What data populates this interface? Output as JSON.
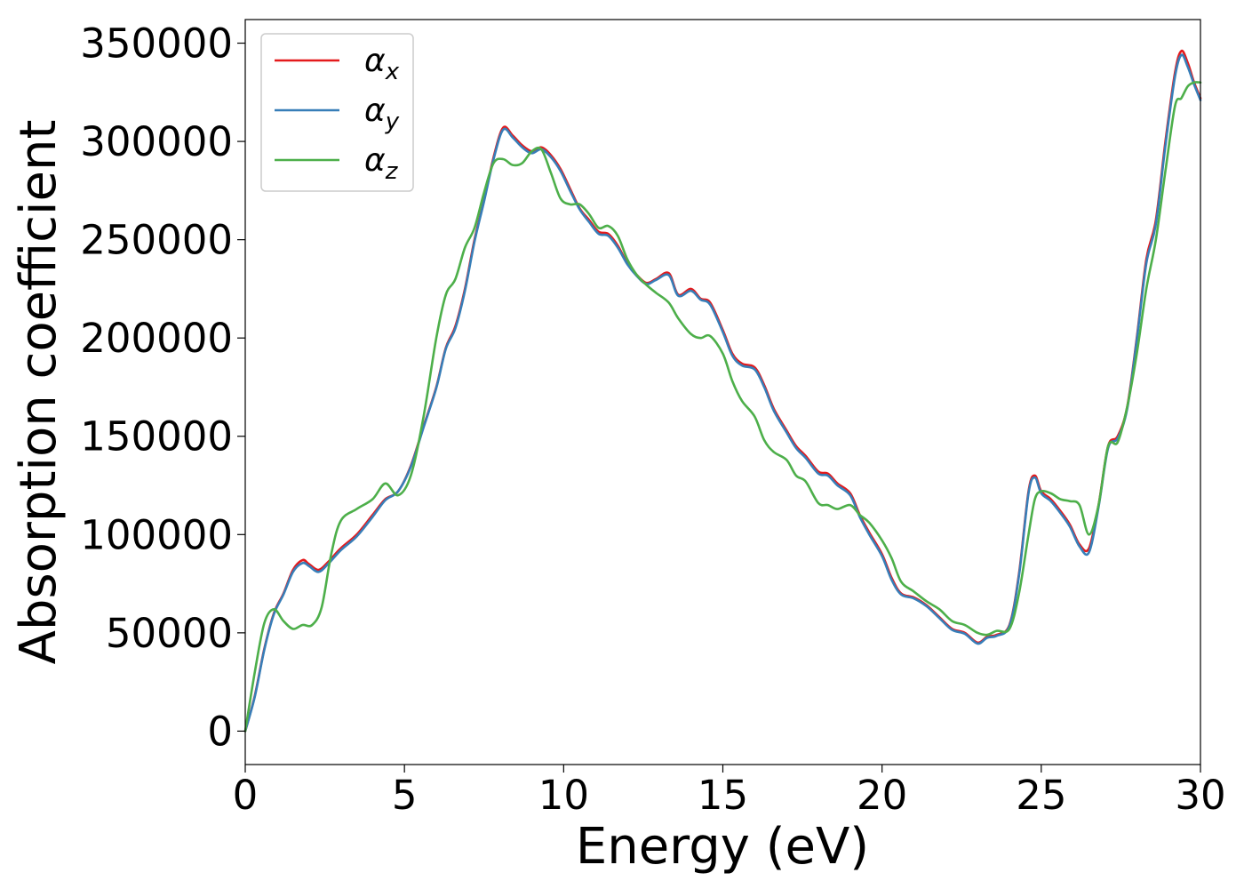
{
  "chart_data": {
    "type": "line",
    "title": "",
    "xlabel": "Energy (eV)",
    "ylabel": "Absorption coefficient",
    "xlim": [
      0,
      30
    ],
    "ylim": [
      -17000,
      362000
    ],
    "x_ticks": [
      0,
      5,
      10,
      15,
      20,
      25,
      30
    ],
    "y_ticks": [
      0,
      50000,
      100000,
      150000,
      200000,
      250000,
      300000,
      350000
    ],
    "grid": false,
    "legend_position": "upper-left",
    "series": [
      {
        "name": "αx",
        "legend_main": "α",
        "legend_sub": "x",
        "color": "#e41a1c",
        "x": [
          0,
          0.3,
          0.6,
          0.9,
          1.2,
          1.5,
          1.8,
          2.0,
          2.3,
          2.6,
          3.0,
          3.5,
          4.0,
          4.4,
          4.8,
          5.2,
          5.6,
          6.0,
          6.3,
          6.6,
          6.9,
          7.2,
          7.5,
          7.8,
          8.1,
          8.4,
          8.7,
          9.0,
          9.3,
          9.6,
          9.9,
          10.2,
          10.5,
          10.8,
          11.1,
          11.4,
          11.7,
          12.0,
          12.3,
          12.6,
          12.9,
          13.3,
          13.6,
          14.0,
          14.3,
          14.6,
          15.0,
          15.3,
          15.6,
          16.0,
          16.3,
          16.6,
          17.0,
          17.3,
          17.6,
          18.0,
          18.3,
          18.6,
          19.0,
          19.3,
          19.6,
          20.0,
          20.3,
          20.6,
          21.0,
          21.4,
          21.8,
          22.2,
          22.6,
          23.0,
          23.3,
          23.6,
          24.0,
          24.3,
          24.6,
          24.8,
          25.0,
          25.3,
          25.6,
          25.9,
          26.2,
          26.5,
          26.8,
          27.1,
          27.4,
          27.7,
          28.0,
          28.3,
          28.6,
          28.9,
          29.2,
          29.4,
          29.6,
          29.8,
          30.0
        ],
        "values": [
          0,
          18000,
          42000,
          60000,
          70000,
          82000,
          87000,
          85000,
          82000,
          86000,
          93000,
          100000,
          110000,
          118000,
          122000,
          135000,
          155000,
          175000,
          195000,
          206000,
          225000,
          250000,
          270000,
          292000,
          307000,
          303000,
          298000,
          295000,
          297000,
          293000,
          286000,
          276000,
          266000,
          260000,
          254000,
          253000,
          247000,
          238000,
          232000,
          228000,
          230000,
          233000,
          222000,
          225000,
          220000,
          218000,
          204000,
          192000,
          187000,
          185000,
          176000,
          164000,
          153000,
          145000,
          140000,
          132000,
          131000,
          126000,
          121000,
          110000,
          101000,
          90000,
          78000,
          70000,
          68000,
          64000,
          58000,
          52000,
          50000,
          45000,
          48000,
          49000,
          54000,
          80000,
          122000,
          130000,
          122000,
          118000,
          112000,
          105000,
          95000,
          93000,
          115000,
          145000,
          150000,
          165000,
          200000,
          240000,
          260000,
          300000,
          335000,
          346000,
          340000,
          330000,
          322000
        ]
      },
      {
        "name": "αy",
        "legend_main": "α",
        "legend_sub": "y",
        "color": "#377eb8",
        "x": [
          0,
          0.3,
          0.6,
          0.9,
          1.2,
          1.5,
          1.8,
          2.0,
          2.3,
          2.6,
          3.0,
          3.5,
          4.0,
          4.4,
          4.8,
          5.2,
          5.6,
          6.0,
          6.3,
          6.6,
          6.9,
          7.2,
          7.5,
          7.8,
          8.1,
          8.4,
          8.7,
          9.0,
          9.3,
          9.6,
          9.9,
          10.2,
          10.5,
          10.8,
          11.1,
          11.4,
          11.7,
          12.0,
          12.3,
          12.6,
          12.9,
          13.3,
          13.6,
          14.0,
          14.3,
          14.6,
          15.0,
          15.3,
          15.6,
          16.0,
          16.3,
          16.6,
          17.0,
          17.3,
          17.6,
          18.0,
          18.3,
          18.6,
          19.0,
          19.3,
          19.6,
          20.0,
          20.3,
          20.6,
          21.0,
          21.4,
          21.8,
          22.2,
          22.6,
          23.0,
          23.3,
          23.6,
          24.0,
          24.3,
          24.6,
          24.8,
          25.0,
          25.3,
          25.6,
          25.9,
          26.2,
          26.5,
          26.8,
          27.1,
          27.4,
          27.7,
          28.0,
          28.3,
          28.6,
          28.9,
          29.2,
          29.4,
          29.6,
          29.8,
          30.0
        ],
        "values": [
          0,
          17500,
          41500,
          59500,
          69500,
          81000,
          85500,
          84000,
          81000,
          85000,
          92000,
          99000,
          109000,
          117500,
          122000,
          134500,
          154500,
          174500,
          194500,
          205000,
          224000,
          249000,
          269500,
          291000,
          306000,
          302000,
          297000,
          294000,
          296000,
          292000,
          285000,
          275000,
          265500,
          259000,
          253000,
          252000,
          246000,
          237500,
          231500,
          227500,
          229500,
          232000,
          221500,
          224000,
          219500,
          217000,
          203000,
          191000,
          186000,
          184000,
          175000,
          163000,
          152000,
          144000,
          139000,
          131000,
          130000,
          125000,
          120000,
          109000,
          100000,
          89000,
          77000,
          69500,
          67500,
          63500,
          57500,
          51500,
          49500,
          44500,
          47500,
          48500,
          53500,
          79000,
          121000,
          129000,
          121000,
          117000,
          111000,
          104000,
          94000,
          91000,
          114000,
          144000,
          149000,
          164000,
          199000,
          238000,
          258000,
          298000,
          333000,
          344000,
          338000,
          329000,
          321000
        ]
      },
      {
        "name": "αz",
        "legend_main": "α",
        "legend_sub": "z",
        "color": "#4daf4a",
        "x": [
          0,
          0.3,
          0.6,
          0.9,
          1.2,
          1.5,
          1.8,
          2.1,
          2.4,
          2.7,
          3.0,
          3.5,
          4.0,
          4.4,
          4.8,
          5.2,
          5.6,
          6.0,
          6.3,
          6.6,
          6.9,
          7.2,
          7.5,
          7.8,
          8.1,
          8.4,
          8.7,
          9.0,
          9.3,
          9.6,
          9.9,
          10.2,
          10.5,
          10.8,
          11.1,
          11.4,
          11.7,
          12.0,
          12.3,
          12.6,
          12.9,
          13.3,
          13.6,
          14.0,
          14.3,
          14.6,
          15.0,
          15.3,
          15.6,
          16.0,
          16.3,
          16.6,
          17.0,
          17.3,
          17.6,
          18.0,
          18.3,
          18.6,
          19.0,
          19.3,
          19.6,
          20.0,
          20.3,
          20.6,
          21.0,
          21.4,
          21.8,
          22.2,
          22.6,
          23.0,
          23.3,
          23.6,
          24.0,
          24.3,
          24.6,
          24.8,
          25.0,
          25.3,
          25.6,
          25.9,
          26.2,
          26.5,
          26.8,
          27.1,
          27.4,
          27.7,
          28.0,
          28.3,
          28.6,
          28.9,
          29.2,
          29.4,
          29.6,
          29.8,
          30.0
        ],
        "values": [
          0,
          30000,
          55000,
          62000,
          56000,
          52000,
          54000,
          54000,
          63000,
          90000,
          107000,
          113000,
          118000,
          126000,
          120000,
          130000,
          160000,
          200000,
          222000,
          230000,
          246000,
          256000,
          274000,
          289000,
          291000,
          288000,
          289000,
          295000,
          296000,
          284000,
          271000,
          268000,
          268000,
          263000,
          256000,
          257000,
          252000,
          240000,
          232000,
          227000,
          223000,
          218000,
          210000,
          202000,
          200000,
          201000,
          192000,
          178000,
          168000,
          160000,
          148000,
          142000,
          138000,
          130000,
          127000,
          116000,
          115000,
          113000,
          115000,
          110000,
          106000,
          97000,
          88000,
          76000,
          71000,
          66000,
          62000,
          56000,
          54000,
          50000,
          49000,
          51000,
          52000,
          70000,
          100000,
          118000,
          122000,
          121000,
          118000,
          117000,
          115000,
          100000,
          115000,
          145000,
          147000,
          165000,
          192000,
          225000,
          250000,
          285000,
          318000,
          322000,
          328000,
          330000,
          330000
        ]
      }
    ]
  }
}
